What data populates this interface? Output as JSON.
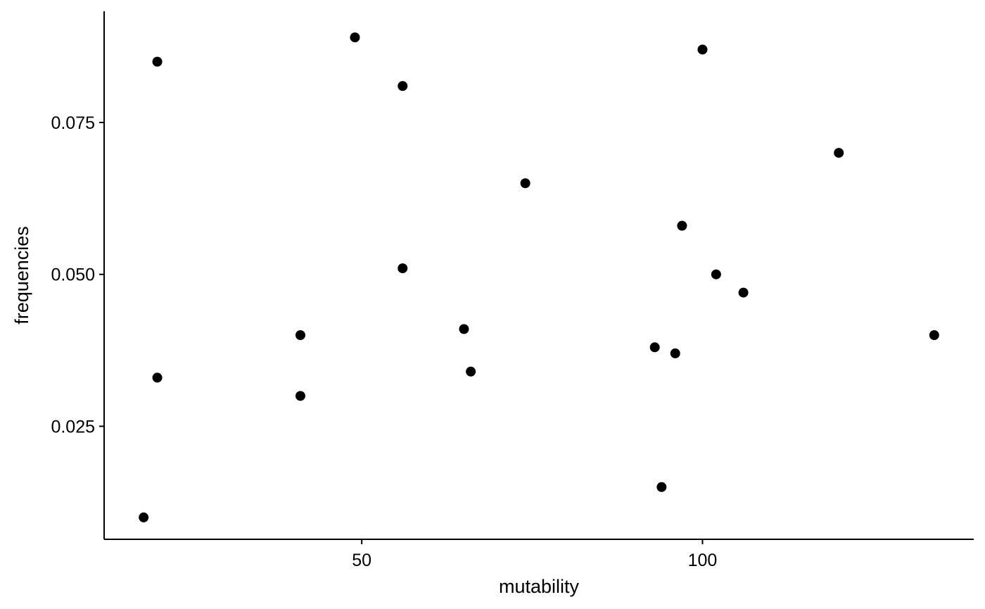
{
  "chart_data": {
    "type": "scatter",
    "title": "",
    "xlabel": "mutability",
    "ylabel": "frequencies",
    "xlim": [
      12.2,
      139.8
    ],
    "ylim": [
      0.0064,
      0.0933
    ],
    "x_ticks": [
      50,
      100
    ],
    "x_tick_labels": [
      "50",
      "100"
    ],
    "y_ticks": [
      0.025,
      0.05,
      0.075
    ],
    "y_tick_labels": [
      "0.025",
      "0.050",
      "0.075"
    ],
    "grid": false,
    "legend": false,
    "point_color": "#000000",
    "points": [
      {
        "x": 18,
        "y": 0.01
      },
      {
        "x": 20,
        "y": 0.085
      },
      {
        "x": 20,
        "y": 0.033
      },
      {
        "x": 41,
        "y": 0.04
      },
      {
        "x": 41,
        "y": 0.03
      },
      {
        "x": 49,
        "y": 0.089
      },
      {
        "x": 56,
        "y": 0.081
      },
      {
        "x": 56,
        "y": 0.051
      },
      {
        "x": 65,
        "y": 0.041
      },
      {
        "x": 66,
        "y": 0.034
      },
      {
        "x": 74,
        "y": 0.065
      },
      {
        "x": 93,
        "y": 0.038
      },
      {
        "x": 94,
        "y": 0.015
      },
      {
        "x": 96,
        "y": 0.037
      },
      {
        "x": 97,
        "y": 0.058
      },
      {
        "x": 100,
        "y": 0.087
      },
      {
        "x": 102,
        "y": 0.05
      },
      {
        "x": 106,
        "y": 0.047
      },
      {
        "x": 120,
        "y": 0.07
      },
      {
        "x": 134,
        "y": 0.04
      }
    ]
  }
}
